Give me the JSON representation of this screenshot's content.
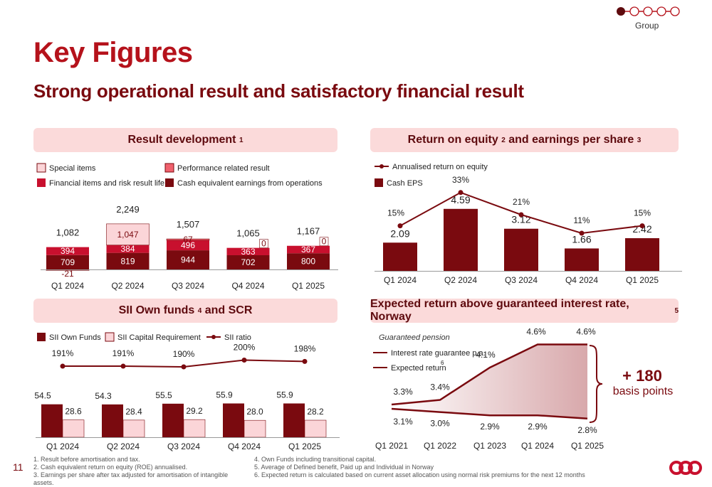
{
  "header": {
    "title": "Key Figures",
    "subtitle": "Strong operational result and satisfactory financial result",
    "nav_label": "Group",
    "page_number": "11"
  },
  "colors": {
    "dark": "#7a0a0f",
    "red": "#c8102e",
    "pink": "#f0616d",
    "light": "#fbd5d8",
    "accent": "#b5121b"
  },
  "panels": {
    "result": {
      "title": "Result development",
      "note": "1"
    },
    "roe": {
      "title": "Return on equity",
      "note1": "2",
      "mid": " and earnings per share ",
      "note2": "3"
    },
    "sii": {
      "title": "SII Own funds",
      "note": "4",
      "rest": " and SCR"
    },
    "expected": {
      "title": "Expected return above guaranteed interest rate, Norway",
      "note": "5"
    }
  },
  "chart_data": [
    {
      "id": "result",
      "type": "bar",
      "stacked": true,
      "categories": [
        "Q1 2024",
        "Q2 2024",
        "Q3 2024",
        "Q4 2024",
        "Q1 2025"
      ],
      "series": [
        {
          "name": "Cash equivalent earnings from operations",
          "values": [
            709,
            819,
            944,
            702,
            800
          ],
          "labels": [
            "709",
            "819",
            "944",
            "702",
            "800"
          ]
        },
        {
          "name": "Financial items and risk result life",
          "values": [
            394,
            384,
            496,
            363,
            367
          ],
          "labels": [
            "394",
            "384",
            "496",
            "363",
            "367"
          ]
        },
        {
          "name": "Performance related result",
          "values": [
            0,
            0,
            67,
            0,
            0
          ],
          "labels": [
            "",
            "",
            "67",
            "0",
            "0"
          ]
        },
        {
          "name": "Special items",
          "values": [
            -21,
            1047,
            0,
            0,
            0
          ],
          "labels": [
            "-21",
            "1,047",
            "",
            "",
            ""
          ]
        }
      ],
      "totals": [
        "1,082",
        "2,249",
        "1,507",
        "1,065",
        "1,167"
      ],
      "legend": [
        "Special items",
        "Performance related result",
        "Financial items and risk result life",
        "Cash equivalent earnings from operations"
      ]
    },
    {
      "id": "roe",
      "type": "bar",
      "categories": [
        "Q1 2024",
        "Q2 2024",
        "Q3 2024",
        "Q4 2024",
        "Q1 2025"
      ],
      "series": [
        {
          "name": "Cash EPS",
          "values": [
            2.09,
            4.59,
            3.12,
            1.66,
            2.42
          ],
          "labels": [
            "2.09",
            "4.59",
            "3.12",
            "1.66",
            "2.42"
          ]
        },
        {
          "name": "Annualised return on equity",
          "type": "line",
          "values": [
            15,
            33,
            21,
            11,
            15
          ],
          "labels": [
            "15%",
            "33%",
            "21%",
            "11%",
            "15%"
          ]
        }
      ],
      "legend": [
        "Annualised return on equity",
        "Cash EPS"
      ]
    },
    {
      "id": "sii",
      "type": "bar",
      "categories": [
        "Q1 2024",
        "Q2 2024",
        "Q3 2024",
        "Q4 2024",
        "Q1 2025"
      ],
      "series": [
        {
          "name": "SII Own Funds",
          "values": [
            54.5,
            54.3,
            55.5,
            55.9,
            55.9
          ],
          "labels": [
            "54.5",
            "54.3",
            "55.5",
            "55.9",
            "55.9"
          ]
        },
        {
          "name": "SII Capital Requirement",
          "values": [
            28.6,
            28.4,
            29.2,
            28.0,
            28.2
          ],
          "labels": [
            "28.6",
            "28.4",
            "29.2",
            "28.0",
            "28.2"
          ]
        },
        {
          "name": "SII ratio",
          "type": "line",
          "values": [
            191,
            191,
            190,
            200,
            198
          ],
          "labels": [
            "191%",
            "191%",
            "190%",
            "200%",
            "198%"
          ]
        }
      ],
      "legend": [
        "SII Own Funds",
        "SII Capital Requirement",
        "SII ratio"
      ]
    },
    {
      "id": "expected",
      "type": "area",
      "x": [
        "Q1 2021",
        "Q1 2022",
        "Q1 2023",
        "Q1 2024",
        "Q1 2025"
      ],
      "series": [
        {
          "name": "Expected return",
          "values": [
            3.3,
            3.4,
            4.1,
            4.6,
            4.6
          ],
          "labels": [
            "3.3%",
            "3.4%",
            "4.1%",
            "4.6%",
            "4.6%"
          ]
        },
        {
          "name": "Interest rate guarantee p.a.",
          "values": [
            3.1,
            3.0,
            2.9,
            2.9,
            2.8
          ],
          "labels": [
            "3.1%",
            "3.0%",
            "2.9%",
            "2.9%",
            "2.8%"
          ]
        }
      ],
      "legend_title": "Guaranteed pension",
      "legend": [
        "Interest rate guarantee p.a.",
        "Expected return"
      ],
      "legend_note": "6",
      "annotation_big": "+ 180",
      "annotation_small": "basis points"
    }
  ],
  "footnotes": {
    "left": [
      "1. Result before amortisation and tax.",
      "2. Cash equivalent return on equity (ROE) annualised.",
      "3. Earnings per share after tax adjusted for amortisation of intangible assets."
    ],
    "right": [
      "4. Own Funds including transitional capital.",
      "5. Average of Defined benefit, Paid up and Individual in Norway",
      "6. Expected return is calculated based on current asset allocation using normal risk premiums for the next 12 months"
    ]
  }
}
